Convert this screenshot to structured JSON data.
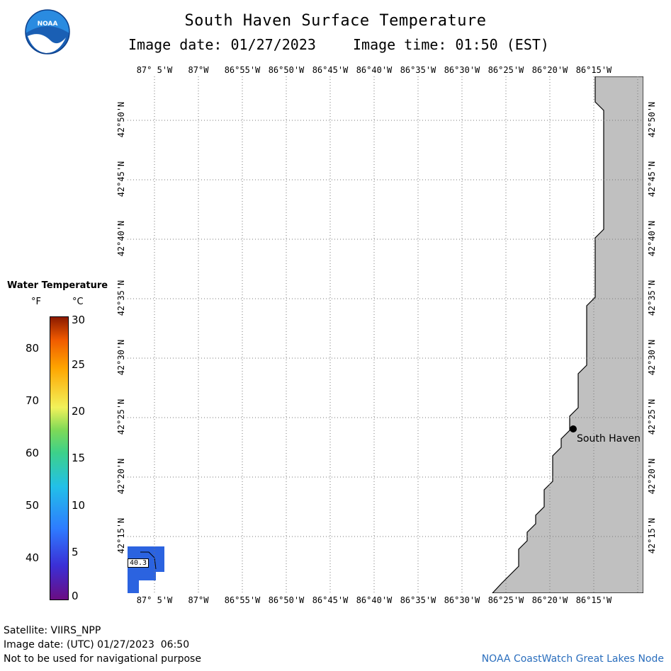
{
  "header": {
    "title": "South Haven Surface Temperature",
    "image_date": "Image date: 01/27/2023",
    "image_time": "Image time: 01:50 (EST)"
  },
  "logo": {
    "text": "NOAA",
    "icon": "noaa-logo-icon"
  },
  "map": {
    "lon_labels": [
      "87° 5'W",
      "87°W",
      "86°55'W",
      "86°50'W",
      "86°45'W",
      "86°40'W",
      "86°35'W",
      "86°30'W",
      "86°25'W",
      "86°20'W",
      "86°15'W"
    ],
    "lat_labels": [
      "42°50'N",
      "42°45'N",
      "42°40'N",
      "42°35'N",
      "42°30'N",
      "42°25'N",
      "42°20'N",
      "42°15'N"
    ],
    "city": "South Haven",
    "pixel_value": "40.3",
    "land_color": "#c0c0c0",
    "water_color": "#ffffff",
    "data_color": "#2b63e0"
  },
  "legend": {
    "title": "Water Temperature",
    "unit_f": "°F",
    "unit_c": "°C",
    "f_ticks": [
      "80",
      "70",
      "60",
      "50",
      "40"
    ],
    "c_ticks": [
      "30",
      "25",
      "20",
      "15",
      "10",
      "5",
      "0"
    ]
  },
  "footer": {
    "satellite": "Satellite: VIIRS_NPP",
    "utc_date": "Image date: (UTC) 01/27/2023  06:50",
    "disclaimer": "Not to be used for navigational purpose",
    "credit": "NOAA CoastWatch Great Lakes Node"
  }
}
